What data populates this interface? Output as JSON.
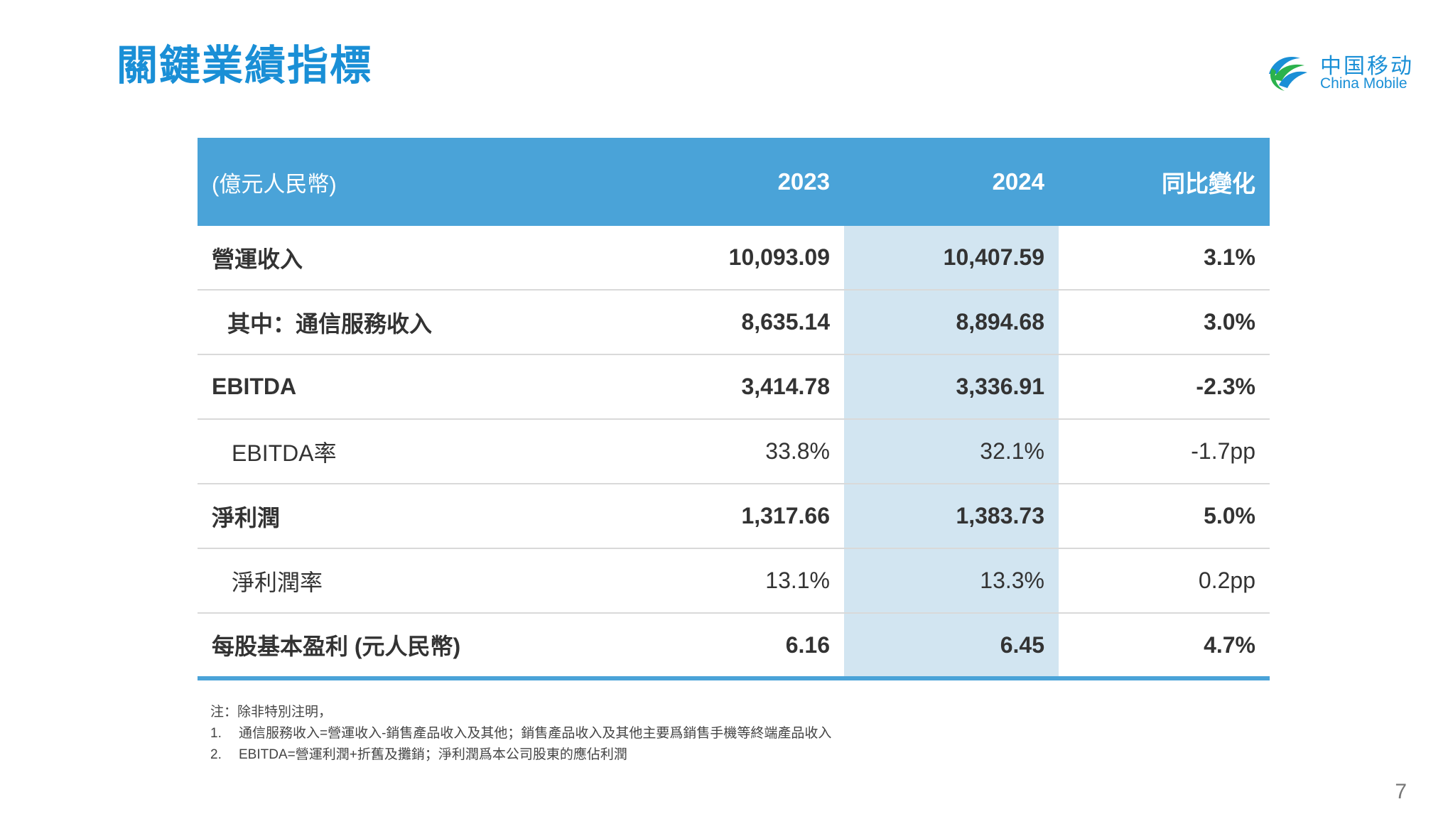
{
  "title": "關鍵業績指標",
  "logo": {
    "cn": "中国移动",
    "en": "China Mobile"
  },
  "table": {
    "header": {
      "unit": "(億元人民幣)",
      "col1": "2023",
      "col2": "2024",
      "col3": "同比變化"
    },
    "rows": [
      {
        "label": "營運收入",
        "v2023": "10,093.09",
        "v2024": "10,407.59",
        "change": "3.1%"
      },
      {
        "label": "其中：通信服務收入",
        "v2023": "8,635.14",
        "v2024": "8,894.68",
        "change": "3.0%"
      },
      {
        "label": "EBITDA",
        "v2023": "3,414.78",
        "v2024": "3,336.91",
        "change": "-2.3%"
      },
      {
        "label": "EBITDA率",
        "v2023": "33.8%",
        "v2024": "32.1%",
        "change": "-1.7pp"
      },
      {
        "label": "淨利潤",
        "v2023": "1,317.66",
        "v2024": "1,383.73",
        "change": "5.0%"
      },
      {
        "label": "淨利潤率",
        "v2023": "13.1%",
        "v2024": "13.3%",
        "change": "0.2pp"
      },
      {
        "label": "每股基本盈利 (元人民幣)",
        "v2023": "6.16",
        "v2024": "6.45",
        "change": "4.7%"
      }
    ]
  },
  "notes": {
    "intro": "注：除非特別注明，",
    "items": [
      {
        "num": "1.",
        "text": "通信服務收入=營運收入-銷售產品收入及其他；銷售產品收入及其他主要爲銷售手機等終端產品收入"
      },
      {
        "num": "2.",
        "text": "EBITDA=營運利潤+折舊及攤銷；淨利潤爲本公司股東的應佔利潤"
      }
    ]
  },
  "page_number": "7",
  "colors": {
    "title": "#1a8fd6",
    "header_bg": "#4aa3d8",
    "highlight_col": "#d2e5f1"
  }
}
